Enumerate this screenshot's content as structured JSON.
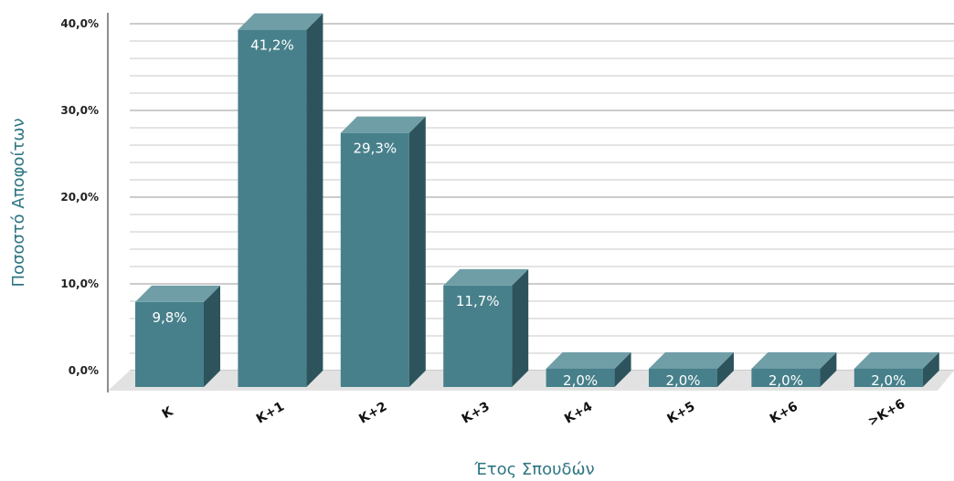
{
  "chart_data": {
    "type": "bar",
    "categories": [
      "K",
      "K+1",
      "K+2",
      "K+3",
      "K+4",
      "K+5",
      "K+6",
      ">K+6"
    ],
    "values": [
      9.8,
      41.2,
      29.3,
      11.7,
      2.0,
      2.0,
      2.0,
      2.0
    ],
    "value_labels": [
      "9,8%",
      "41,2%",
      "29,3%",
      "11,7%",
      "2,0%",
      "2,0%",
      "2,0%",
      "2,0%"
    ],
    "title": "",
    "xlabel": "Έτος Σπουδών",
    "ylabel": "Ποσοστό  Αποφοίτων",
    "ylim": [
      0,
      40
    ],
    "yticks": [
      0,
      10,
      20,
      30,
      40
    ],
    "ytick_labels": [
      "0,0%",
      "10,0%",
      "20,0%",
      "30,0%",
      "40,0%"
    ],
    "grid": true,
    "colors": {
      "bar_front": "#47808b",
      "bar_top": "#6f9ea7",
      "bar_side": "#2d545c",
      "grid": "#c8c8c8",
      "floor": "#e2e2e2",
      "label_text": "#ffffff",
      "axis_title": "#2e7582"
    }
  }
}
